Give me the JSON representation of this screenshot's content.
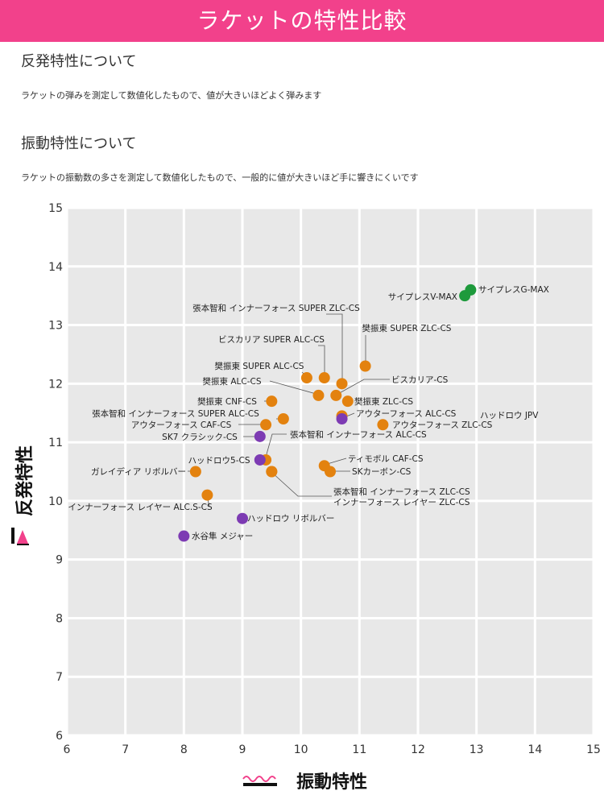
{
  "header": {
    "title": "ラケットの特性比較"
  },
  "sections": [
    {
      "title": "反発特性について",
      "desc": "ラケットの弾みを測定して数値化したもので、値が大きいほどよく弾みます"
    },
    {
      "title": "振動特性について",
      "desc": "ラケットの振動数の多さを測定して数値化したもので、一般的に値が大きいほど手に響きにくいです"
    }
  ],
  "colors": {
    "header": "#f2418b",
    "orange": "#e3820f",
    "purple": "#7d3bb3",
    "green": "#1e9a3c",
    "plot_bg": "#e8e8e8",
    "accent": "#f2418b"
  },
  "chart_data": {
    "type": "scatter",
    "xlabel": "振動特性",
    "ylabel": "反発特性",
    "xlim": [
      6,
      15
    ],
    "ylim": [
      6,
      15
    ],
    "xticks": [
      "6",
      "7",
      "8",
      "9",
      "10",
      "11",
      "12",
      "13",
      "14",
      "15"
    ],
    "yticks": [
      "6",
      "7",
      "8",
      "9",
      "10",
      "11",
      "12",
      "13",
      "14",
      "15"
    ],
    "grid": true,
    "points": [
      {
        "label": "サイプレスG-MAX",
        "x": 12.9,
        "y": 13.6,
        "color": "green"
      },
      {
        "label": "サイプレスV-MAX",
        "x": 12.8,
        "y": 13.5,
        "color": "green"
      },
      {
        "label": "張本智和 インナーフォース SUPER ZLC-CS",
        "x": 10.7,
        "y": 12.0,
        "color": "orange"
      },
      {
        "label": "樊振東 SUPER ZLC-CS",
        "x": 11.1,
        "y": 12.3,
        "color": "orange"
      },
      {
        "label": "ビスカリア SUPER ALC-CS",
        "x": 10.4,
        "y": 12.1,
        "color": "orange"
      },
      {
        "label": "樊振東 SUPER ALC-CS",
        "x": 10.1,
        "y": 12.1,
        "color": "orange"
      },
      {
        "label": "樊振東 ALC-CS",
        "x": 10.3,
        "y": 11.8,
        "color": "orange"
      },
      {
        "label": "ビスカリア-CS",
        "x": 10.6,
        "y": 11.8,
        "color": "orange"
      },
      {
        "label": "樊振東 ZLC-CS",
        "x": 10.8,
        "y": 11.7,
        "color": "orange"
      },
      {
        "label": "樊振東 CNF-CS",
        "x": 9.5,
        "y": 11.7,
        "color": "orange"
      },
      {
        "label": "張本智和 インナーフォース SUPER ALC-CS",
        "x": 9.7,
        "y": 11.4,
        "color": "orange"
      },
      {
        "label": "アウターフォース ALC-CS",
        "x": 10.7,
        "y": 11.45,
        "color": "orange"
      },
      {
        "label": "ハッドロウ JPV",
        "x": 10.7,
        "y": 11.4,
        "color": "purple"
      },
      {
        "label": "アウターフォース CAF-CS",
        "x": 9.4,
        "y": 11.3,
        "color": "orange"
      },
      {
        "label": "アウターフォース ZLC-CS",
        "x": 11.4,
        "y": 11.3,
        "color": "orange"
      },
      {
        "label": "SK7 クラシック-CS",
        "x": 9.3,
        "y": 11.1,
        "color": "purple"
      },
      {
        "label": "張本智和 インナーフォース ALC-CS",
        "x": 9.4,
        "y": 10.7,
        "color": "orange"
      },
      {
        "label": "ハッドロウ5-CS",
        "x": 9.3,
        "y": 10.7,
        "color": "purple"
      },
      {
        "label": "ティモボル CAF-CS",
        "x": 10.4,
        "y": 10.6,
        "color": "orange"
      },
      {
        "label": "SKカーボン-CS",
        "x": 10.5,
        "y": 10.5,
        "color": "orange"
      },
      {
        "label": "ガレイディア リボルバー",
        "x": 8.2,
        "y": 10.5,
        "color": "orange"
      },
      {
        "label": "張本智和 インナーフォース ZLC-CS",
        "x": 9.5,
        "y": 10.5,
        "color": "orange"
      },
      {
        "label": "インナーフォース レイヤー ZLC-CS",
        "x": 9.5,
        "y": 10.5,
        "color": "orange"
      },
      {
        "label": "インナーフォース レイヤー ALC.S-CS",
        "x": 8.4,
        "y": 10.1,
        "color": "orange"
      },
      {
        "label": "ハッドロウ リボルバー",
        "x": 9.0,
        "y": 9.7,
        "color": "purple"
      },
      {
        "label": "水谷隼 メジャー",
        "x": 8.0,
        "y": 9.4,
        "color": "purple"
      }
    ]
  }
}
